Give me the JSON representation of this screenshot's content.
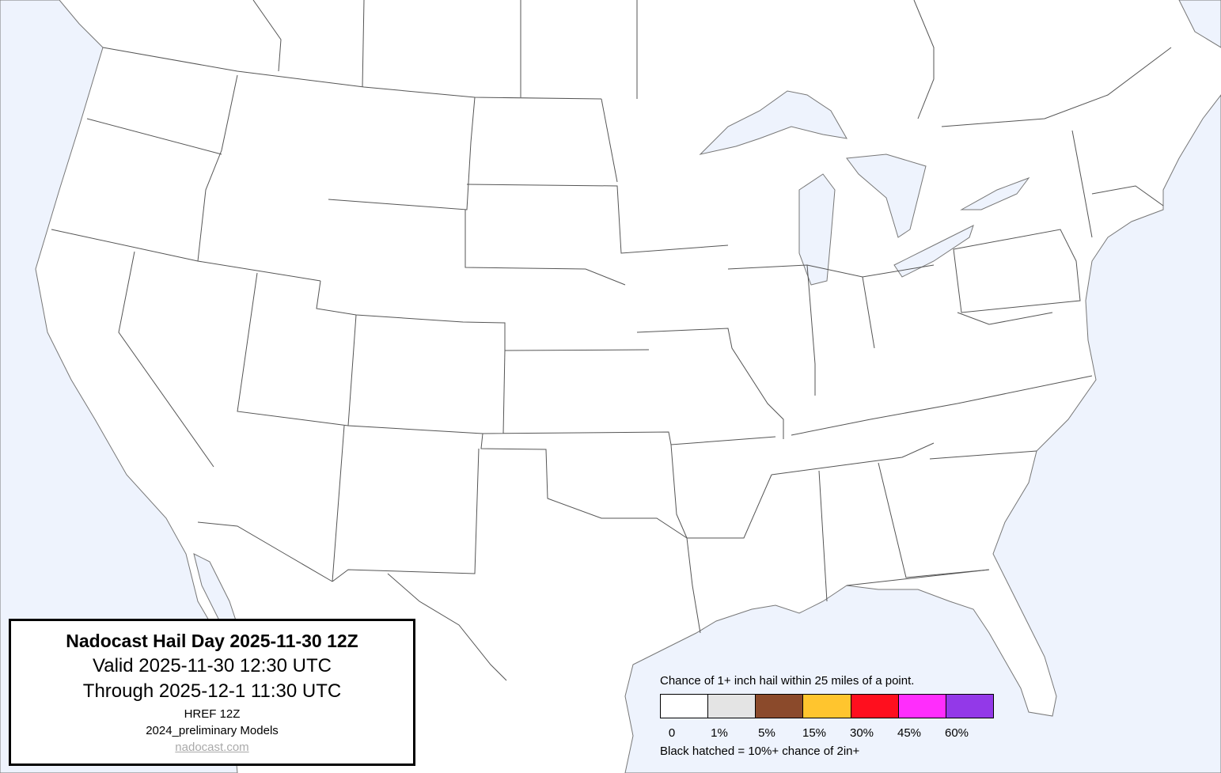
{
  "title_box": {
    "title": "Nadocast Hail Day 2025-11-30 12Z",
    "valid": "Valid 2025-11-30 12:30 UTC",
    "through": "Through 2025-12-1 11:30 UTC",
    "model": "HREF 12Z",
    "models_version": "2024_preliminary Models",
    "link": "nadocast.com"
  },
  "legend": {
    "caption": "Chance of 1+ inch hail within 25 miles of a point.",
    "bins": [
      {
        "label": "0",
        "color": "#ffffff"
      },
      {
        "label": "1%",
        "color": "#e4e4e4"
      },
      {
        "label": "5%",
        "color": "#8b4a2b"
      },
      {
        "label": "15%",
        "color": "#ffc52e"
      },
      {
        "label": "30%",
        "color": "#ff0f1e"
      },
      {
        "label": "45%",
        "color": "#ff2dfc"
      },
      {
        "label": "60%",
        "color": "#9339e8"
      }
    ],
    "note": "Black hatched = 10%+ chance of 2in+"
  },
  "map": {
    "water_color": "#eef3fd",
    "land_color": "#ffffff",
    "forecast_area_shaded": false
  }
}
